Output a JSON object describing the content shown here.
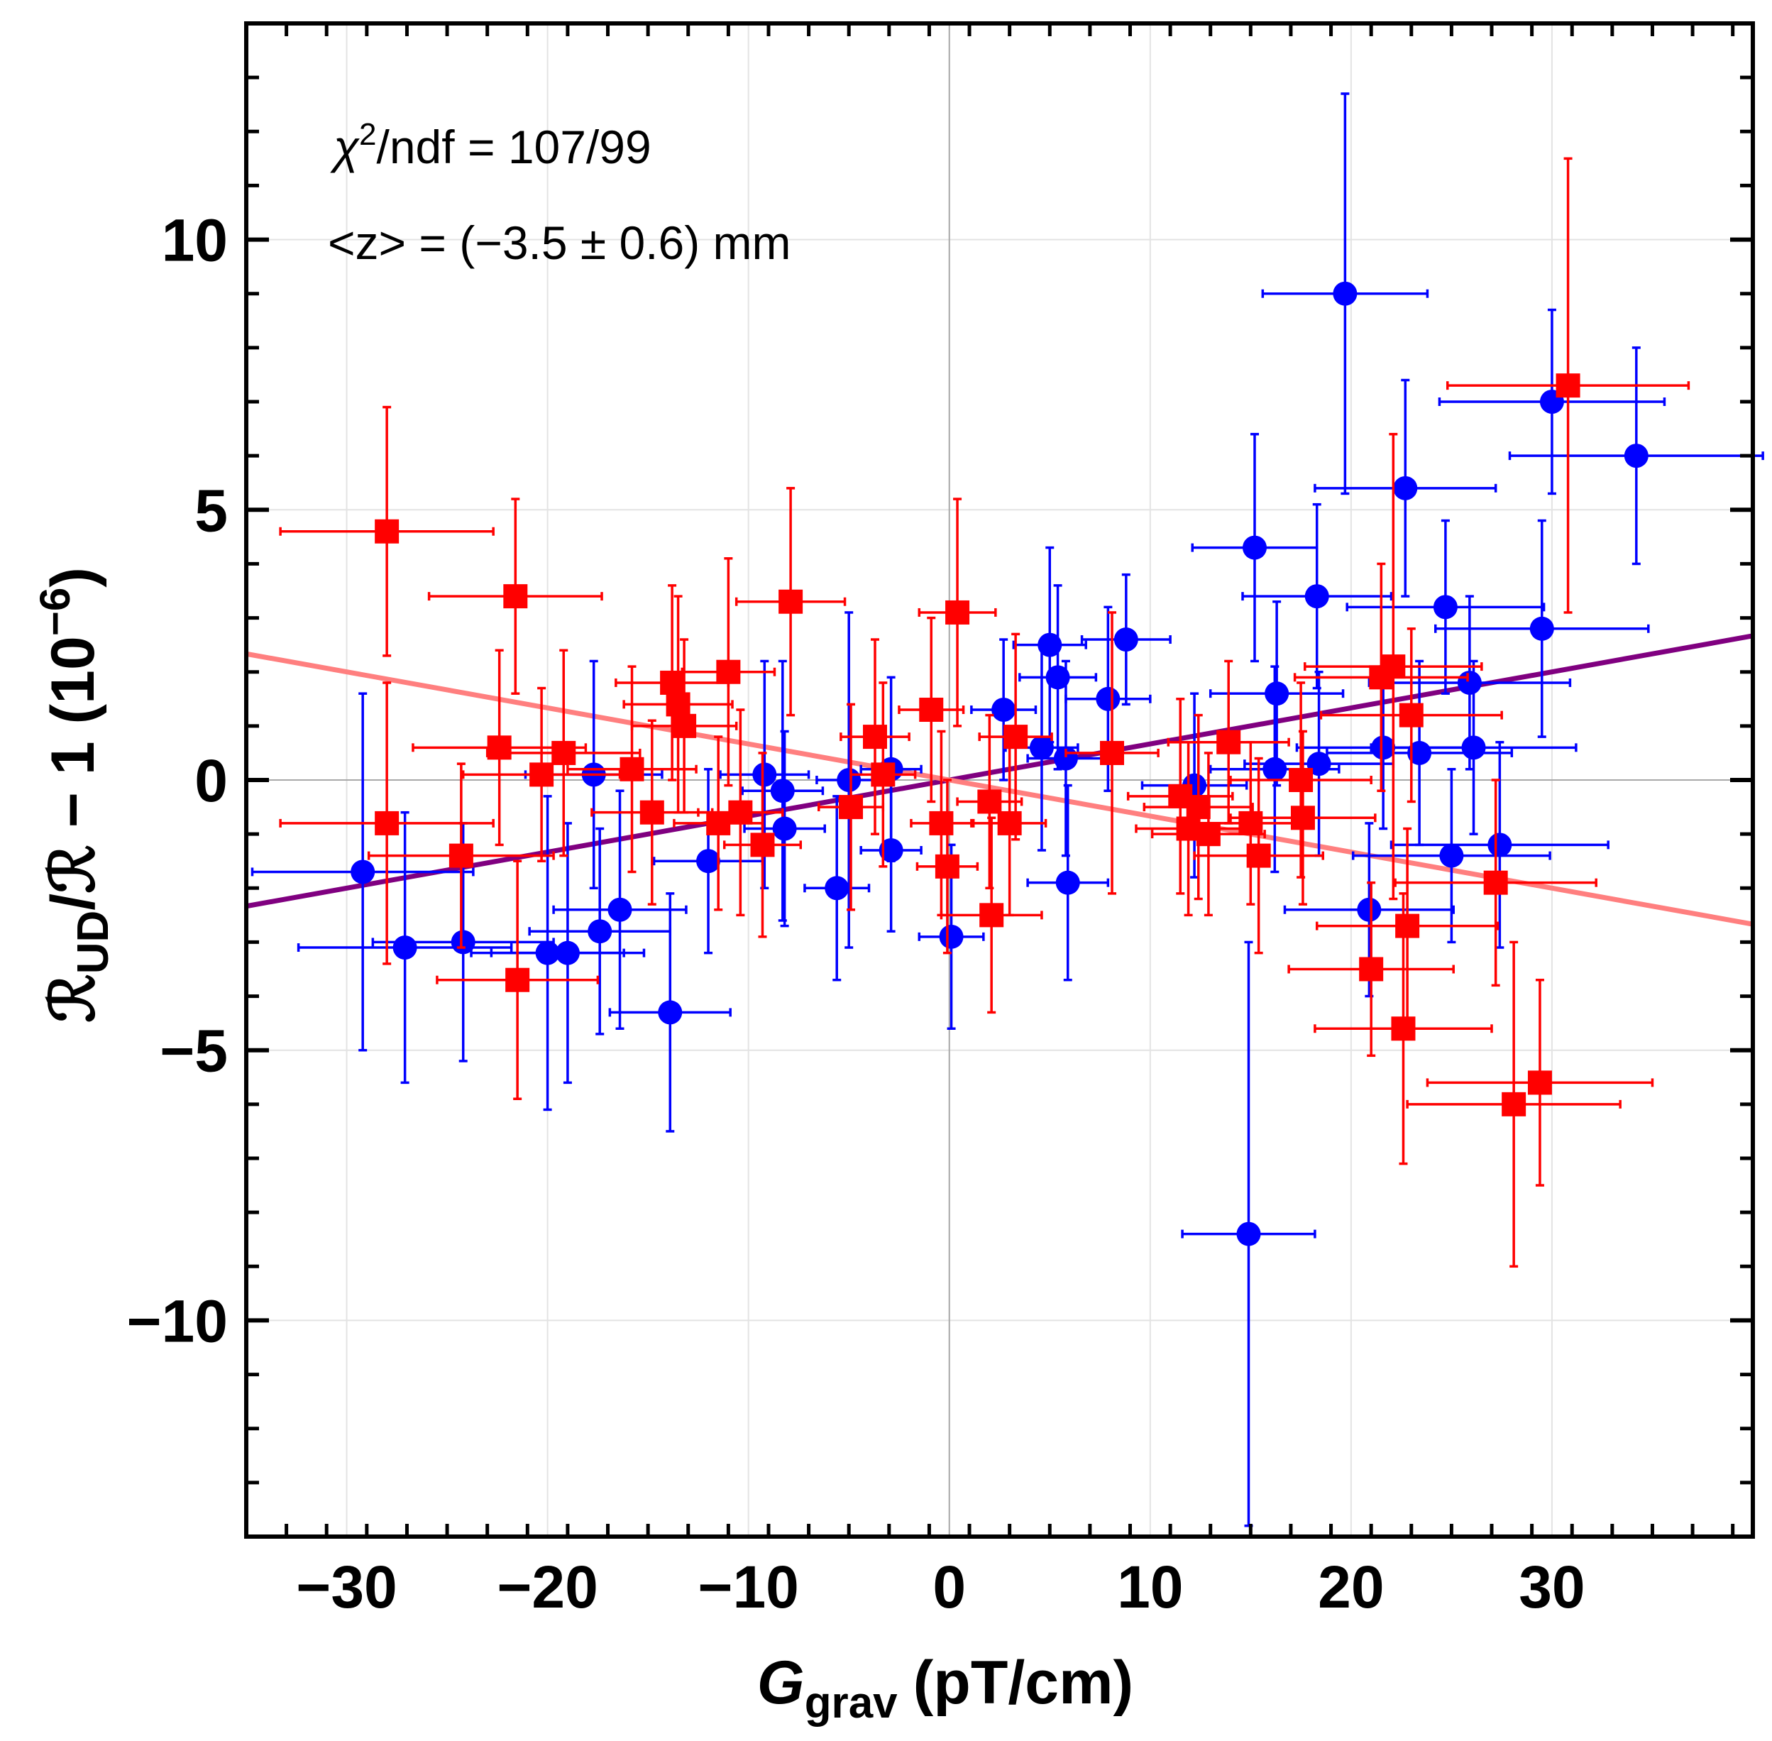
{
  "chart_data": {
    "type": "scatter",
    "title": "",
    "xlabel": {
      "main": "G",
      "sub": "grav",
      "unit": "(pT/cm)"
    },
    "ylabel": {
      "main": "ℛ",
      "sub": "UD",
      "rest": "/ℛ − 1 (10",
      "exp": "−6",
      "close": ")"
    },
    "xlim": [
      -35,
      40
    ],
    "ylim": [
      -14,
      14
    ],
    "xticks": [
      -30,
      -20,
      -10,
      0,
      10,
      20,
      30
    ],
    "xtick_labels": [
      "−30",
      "−20",
      "−10",
      "0",
      "10",
      "20",
      "30"
    ],
    "yticks": [
      -10,
      -5,
      0,
      5,
      10
    ],
    "ytick_labels": [
      "−10",
      "−5",
      "0",
      "5",
      "10"
    ],
    "grid": true,
    "annotations": {
      "chi2_sym": "χ",
      "chi2_exp": "2",
      "chi2_rest": "/ndf = 107/99",
      "z_mean": "<z> = (−3.5 ± 0.6) mm"
    },
    "colors": {
      "blue_series": "#0000ff",
      "red_series": "#ff0000",
      "positive_fit": "#800080",
      "negative_fit": "#ff7f7f"
    },
    "fit_lines": [
      {
        "name": "positive fit",
        "slope": 0.0667,
        "intercept": 0.0,
        "x_range": [
          -35,
          40
        ]
      },
      {
        "name": "negative fit",
        "slope": -0.0667,
        "intercept": 0.0,
        "x_range": [
          -35,
          40
        ]
      }
    ],
    "series": [
      {
        "name": "blue",
        "marker": "circle",
        "points": [
          {
            "x": -29.2,
            "y": -1.7,
            "xerr": 5.5,
            "yerr": 3.3
          },
          {
            "x": -27.1,
            "y": -3.1,
            "xerr": 5.3,
            "yerr": 2.5
          },
          {
            "x": -24.2,
            "y": -3.0,
            "xerr": 4.5,
            "yerr": 2.2
          },
          {
            "x": -20.0,
            "y": -3.2,
            "xerr": 3.8,
            "yerr": 2.9
          },
          {
            "x": -19.0,
            "y": -3.2,
            "xerr": 3.8,
            "yerr": 2.4
          },
          {
            "x": -17.7,
            "y": 0.1,
            "xerr": 3.4,
            "yerr": 2.1
          },
          {
            "x": -17.4,
            "y": -2.8,
            "xerr": 3.5,
            "yerr": 1.9
          },
          {
            "x": -16.4,
            "y": -2.4,
            "xerr": 3.3,
            "yerr": 2.2
          },
          {
            "x": -13.9,
            "y": -4.3,
            "xerr": 3.0,
            "yerr": 2.2
          },
          {
            "x": -12.0,
            "y": -1.5,
            "xerr": 2.7,
            "yerr": 1.7
          },
          {
            "x": -9.2,
            "y": 0.1,
            "xerr": 2.2,
            "yerr": 2.1
          },
          {
            "x": -8.3,
            "y": -0.2,
            "xerr": 2.0,
            "yerr": 2.4
          },
          {
            "x": -8.2,
            "y": -0.9,
            "xerr": 2.0,
            "yerr": 1.8
          },
          {
            "x": -5.6,
            "y": -2.0,
            "xerr": 1.6,
            "yerr": 1.7
          },
          {
            "x": -5.0,
            "y": 0.0,
            "xerr": 1.6,
            "yerr": 3.1
          },
          {
            "x": -2.9,
            "y": 0.2,
            "xerr": 1.5,
            "yerr": 1.7
          },
          {
            "x": -2.9,
            "y": -1.3,
            "xerr": 1.5,
            "yerr": 1.5
          },
          {
            "x": 0.1,
            "y": -2.9,
            "xerr": 1.6,
            "yerr": 1.7
          },
          {
            "x": 2.7,
            "y": 1.3,
            "xerr": 1.6,
            "yerr": 1.3
          },
          {
            "x": 4.6,
            "y": 0.6,
            "xerr": 1.8,
            "yerr": 1.9
          },
          {
            "x": 5.0,
            "y": 2.5,
            "xerr": 1.8,
            "yerr": 1.8
          },
          {
            "x": 5.4,
            "y": 1.9,
            "xerr": 1.9,
            "yerr": 1.7
          },
          {
            "x": 5.8,
            "y": 0.4,
            "xerr": 1.9,
            "yerr": 1.8
          },
          {
            "x": 5.9,
            "y": -1.9,
            "xerr": 2.0,
            "yerr": 1.8
          },
          {
            "x": 7.9,
            "y": 1.5,
            "xerr": 2.1,
            "yerr": 1.7
          },
          {
            "x": 8.8,
            "y": 2.6,
            "xerr": 2.2,
            "yerr": 1.2
          },
          {
            "x": 12.2,
            "y": -0.1,
            "xerr": 2.6,
            "yerr": 1.7
          },
          {
            "x": 14.9,
            "y": -8.4,
            "xerr": 3.3,
            "yerr": 5.4
          },
          {
            "x": 15.2,
            "y": 4.3,
            "xerr": 3.1,
            "yerr": 2.1
          },
          {
            "x": 16.2,
            "y": 0.2,
            "xerr": 3.2,
            "yerr": 1.9
          },
          {
            "x": 16.3,
            "y": 1.6,
            "xerr": 3.3,
            "yerr": 1.7
          },
          {
            "x": 18.3,
            "y": 3.4,
            "xerr": 3.7,
            "yerr": 1.7
          },
          {
            "x": 18.4,
            "y": 0.3,
            "xerr": 3.7,
            "yerr": 1.7
          },
          {
            "x": 19.7,
            "y": 9.0,
            "xerr": 4.1,
            "yerr": 3.7
          },
          {
            "x": 20.9,
            "y": -2.4,
            "xerr": 4.2,
            "yerr": 1.6
          },
          {
            "x": 21.6,
            "y": 0.6,
            "xerr": 4.3,
            "yerr": 1.5
          },
          {
            "x": 22.7,
            "y": 5.4,
            "xerr": 4.5,
            "yerr": 2.0
          },
          {
            "x": 23.4,
            "y": 0.5,
            "xerr": 4.6,
            "yerr": 1.7
          },
          {
            "x": 24.7,
            "y": 3.2,
            "xerr": 4.9,
            "yerr": 1.6
          },
          {
            "x": 25.0,
            "y": -1.4,
            "xerr": 4.9,
            "yerr": 1.6
          },
          {
            "x": 25.9,
            "y": 1.8,
            "xerr": 5.0,
            "yerr": 1.6
          },
          {
            "x": 26.1,
            "y": 0.6,
            "xerr": 5.1,
            "yerr": 1.6
          },
          {
            "x": 27.4,
            "y": -1.2,
            "xerr": 5.4,
            "yerr": 1.9
          },
          {
            "x": 29.5,
            "y": 2.8,
            "xerr": 5.3,
            "yerr": 2.0
          },
          {
            "x": 30.0,
            "y": 7.0,
            "xerr": 5.6,
            "yerr": 1.7
          },
          {
            "x": 34.2,
            "y": 6.0,
            "xerr": 6.3,
            "yerr": 2.0
          }
        ]
      },
      {
        "name": "red",
        "marker": "square",
        "points": [
          {
            "x": -28.0,
            "y": 4.6,
            "xerr": 5.3,
            "yerr": 2.3
          },
          {
            "x": -28.0,
            "y": -0.8,
            "xerr": 5.3,
            "yerr": 2.6
          },
          {
            "x": -24.3,
            "y": -1.4,
            "xerr": 4.6,
            "yerr": 1.7
          },
          {
            "x": -22.4,
            "y": 0.6,
            "xerr": 4.3,
            "yerr": 1.8
          },
          {
            "x": -21.6,
            "y": 3.4,
            "xerr": 4.3,
            "yerr": 1.8
          },
          {
            "x": -21.5,
            "y": -3.7,
            "xerr": 4.0,
            "yerr": 2.2
          },
          {
            "x": -20.3,
            "y": 0.1,
            "xerr": 3.9,
            "yerr": 1.6
          },
          {
            "x": -19.2,
            "y": 0.5,
            "xerr": 3.8,
            "yerr": 1.9
          },
          {
            "x": -15.8,
            "y": 0.2,
            "xerr": 3.2,
            "yerr": 1.9
          },
          {
            "x": -14.8,
            "y": -0.6,
            "xerr": 3.0,
            "yerr": 1.7
          },
          {
            "x": -13.8,
            "y": 1.8,
            "xerr": 2.8,
            "yerr": 1.8
          },
          {
            "x": -13.5,
            "y": 1.4,
            "xerr": 2.7,
            "yerr": 2.0
          },
          {
            "x": -13.2,
            "y": 1.0,
            "xerr": 2.6,
            "yerr": 1.6
          },
          {
            "x": -11.0,
            "y": 2.0,
            "xerr": 2.3,
            "yerr": 2.1
          },
          {
            "x": -11.5,
            "y": -0.8,
            "xerr": 2.2,
            "yerr": 1.6
          },
          {
            "x": -10.4,
            "y": -0.6,
            "xerr": 2.1,
            "yerr": 1.9
          },
          {
            "x": -9.3,
            "y": -1.2,
            "xerr": 1.9,
            "yerr": 1.7
          },
          {
            "x": -7.9,
            "y": 3.3,
            "xerr": 2.7,
            "yerr": 2.1
          },
          {
            "x": -4.9,
            "y": -0.5,
            "xerr": 1.6,
            "yerr": 1.9
          },
          {
            "x": -3.7,
            "y": 0.8,
            "xerr": 1.7,
            "yerr": 1.8
          },
          {
            "x": -3.3,
            "y": 0.1,
            "xerr": 1.6,
            "yerr": 1.7
          },
          {
            "x": -0.9,
            "y": 1.3,
            "xerr": 1.6,
            "yerr": 1.7
          },
          {
            "x": -0.4,
            "y": -0.8,
            "xerr": 1.5,
            "yerr": 1.7
          },
          {
            "x": -0.1,
            "y": -1.6,
            "xerr": 1.5,
            "yerr": 1.6
          },
          {
            "x": 0.4,
            "y": 3.1,
            "xerr": 1.9,
            "yerr": 2.1
          },
          {
            "x": 2.0,
            "y": -0.4,
            "xerr": 1.6,
            "yerr": 1.6
          },
          {
            "x": 2.1,
            "y": -2.5,
            "xerr": 2.5,
            "yerr": 1.8
          },
          {
            "x": 3.0,
            "y": -0.8,
            "xerr": 1.8,
            "yerr": 1.7
          },
          {
            "x": 3.3,
            "y": 0.8,
            "xerr": 1.8,
            "yerr": 1.9
          },
          {
            "x": 8.1,
            "y": 0.5,
            "xerr": 2.3,
            "yerr": 2.6
          },
          {
            "x": 11.5,
            "y": -0.3,
            "xerr": 2.6,
            "yerr": 1.8
          },
          {
            "x": 11.9,
            "y": -0.9,
            "xerr": 2.6,
            "yerr": 1.6
          },
          {
            "x": 12.4,
            "y": -0.5,
            "xerr": 2.7,
            "yerr": 1.7
          },
          {
            "x": 12.9,
            "y": -1.0,
            "xerr": 2.8,
            "yerr": 1.5
          },
          {
            "x": 13.9,
            "y": 0.7,
            "xerr": 3.0,
            "yerr": 1.5
          },
          {
            "x": 15.0,
            "y": -0.8,
            "xerr": 3.0,
            "yerr": 1.5
          },
          {
            "x": 15.4,
            "y": -1.4,
            "xerr": 3.2,
            "yerr": 1.8
          },
          {
            "x": 17.5,
            "y": 0.0,
            "xerr": 3.5,
            "yerr": 1.8
          },
          {
            "x": 17.6,
            "y": -0.7,
            "xerr": 3.6,
            "yerr": 1.6
          },
          {
            "x": 21.0,
            "y": -3.5,
            "xerr": 4.1,
            "yerr": 1.6
          },
          {
            "x": 21.5,
            "y": 1.9,
            "xerr": 4.3,
            "yerr": 2.1
          },
          {
            "x": 22.1,
            "y": 2.1,
            "xerr": 4.4,
            "yerr": 4.3
          },
          {
            "x": 22.6,
            "y": -4.6,
            "xerr": 4.4,
            "yerr": 2.5
          },
          {
            "x": 22.8,
            "y": -2.7,
            "xerr": 4.5,
            "yerr": 1.8
          },
          {
            "x": 23.0,
            "y": 1.2,
            "xerr": 4.5,
            "yerr": 1.6
          },
          {
            "x": 27.2,
            "y": -1.9,
            "xerr": 5.0,
            "yerr": 1.9
          },
          {
            "x": 28.1,
            "y": -6.0,
            "xerr": 5.3,
            "yerr": 3.0
          },
          {
            "x": 29.4,
            "y": -5.6,
            "xerr": 5.6,
            "yerr": 1.9
          },
          {
            "x": 30.8,
            "y": 7.3,
            "xerr": 6.0,
            "yerr": 4.2
          }
        ]
      }
    ]
  }
}
